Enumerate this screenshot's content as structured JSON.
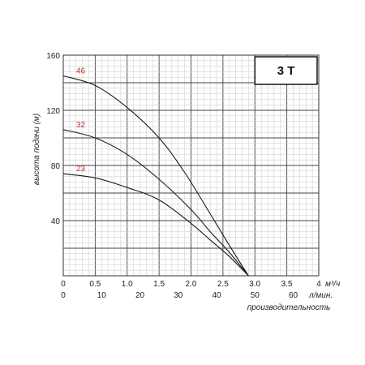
{
  "chart_data": {
    "type": "line",
    "title_box": "3 T",
    "ylabel": "высота подачи (м)",
    "xlabel": "производительность",
    "x_units_top": "м³/ч",
    "x_units_bottom": "л/мин.",
    "xlim": [
      0,
      4
    ],
    "ylim": [
      0,
      160
    ],
    "x_ticks_top": [
      "0",
      "0.5",
      "1.0",
      "1.5",
      "2.0",
      "2.5",
      "3.0",
      "3.5",
      "4"
    ],
    "x_ticks_bottom": [
      "0",
      "10",
      "20",
      "30",
      "40",
      "50",
      "60"
    ],
    "y_ticks": [
      "40",
      "80",
      "120",
      "160"
    ],
    "grid": true,
    "series": [
      {
        "name": "46",
        "x": [
          0,
          0.5,
          1.0,
          1.5,
          1.9,
          2.3,
          2.6,
          2.9
        ],
        "y": [
          145,
          138,
          122,
          100,
          75,
          45,
          22,
          0
        ]
      },
      {
        "name": "32",
        "x": [
          0,
          0.5,
          1.0,
          1.5,
          2.0,
          2.3,
          2.6,
          2.9
        ],
        "y": [
          106,
          100,
          88,
          70,
          48,
          32,
          17,
          0
        ]
      },
      {
        "name": "23",
        "x": [
          0,
          0.5,
          1.0,
          1.5,
          2.0,
          2.3,
          2.6,
          2.9
        ],
        "y": [
          74,
          71,
          64,
          55,
          38,
          26,
          14,
          0
        ]
      }
    ]
  }
}
